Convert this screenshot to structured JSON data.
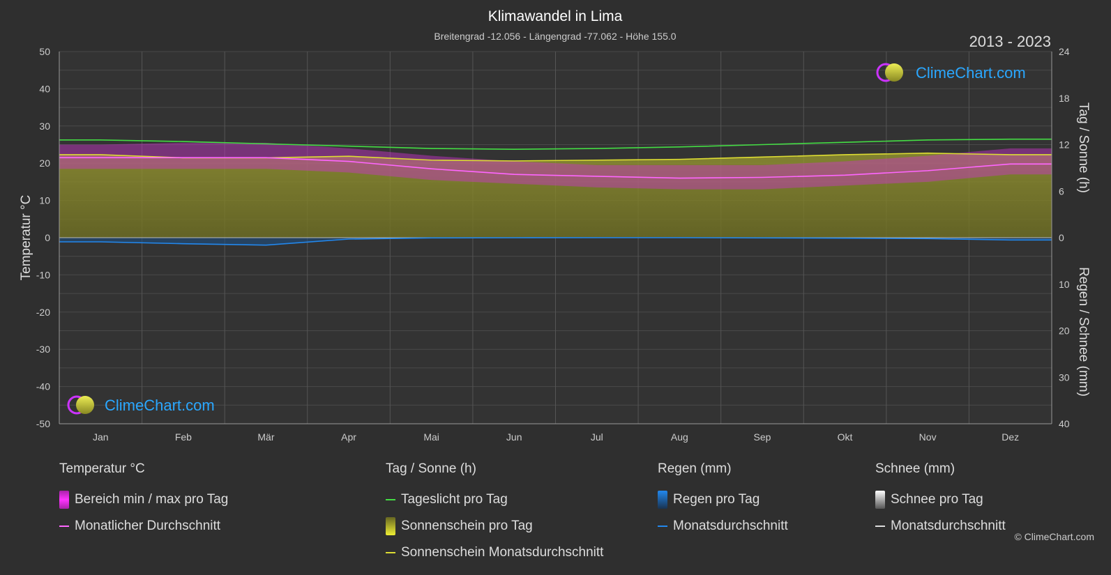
{
  "chart_data": {
    "type": "area",
    "title": "Klimawandel in Lima",
    "subtitle": "Breitengrad -12.056 - Längengrad -77.062 - Höhe 155.0",
    "period": "2013 - 2023",
    "watermark": "ClimeChart.com",
    "copyright": "© ClimeChart.com",
    "y_left_label": "Temperatur °C",
    "y_right_top_label": "Tag / Sonne (h)",
    "y_right_bottom_label": "Regen / Schnee (mm)",
    "y_left_ticks": [
      "50",
      "40",
      "30",
      "20",
      "10",
      "0",
      "-10",
      "-20",
      "-30",
      "-40",
      "-50"
    ],
    "y_right_top_ticks": [
      "24",
      "18",
      "12",
      "6",
      "0"
    ],
    "y_right_bottom_ticks": [
      "10",
      "20",
      "30",
      "40"
    ],
    "months": [
      "Jan",
      "Feb",
      "Mär",
      "Apr",
      "Mai",
      "Jun",
      "Jul",
      "Aug",
      "Sep",
      "Okt",
      "Nov",
      "Dez"
    ],
    "ylim_temp": [
      -50,
      50
    ],
    "ylim_sun_hours": [
      0,
      24
    ],
    "ylim_rain_mm": [
      0,
      40
    ],
    "series": {
      "daylight_hours": [
        12.6,
        12.4,
        12.1,
        11.8,
        11.5,
        11.4,
        11.5,
        11.7,
        12.0,
        12.3,
        12.6,
        12.7
      ],
      "sunshine_monthly_hours": [
        10.7,
        10.3,
        10.3,
        10.5,
        10.0,
        9.9,
        10.0,
        10.1,
        10.4,
        10.7,
        10.9,
        10.7
      ],
      "temp_monthly_avg_c": [
        21.5,
        21.5,
        21.5,
        20.5,
        18.5,
        17.0,
        16.5,
        16.0,
        16.2,
        16.8,
        18.0,
        19.8
      ],
      "temp_daily_max_c": [
        25,
        25.5,
        25.5,
        24,
        22,
        20.5,
        19.5,
        19.5,
        19.5,
        20.5,
        22,
        24
      ],
      "temp_daily_min_c": [
        18.5,
        18.5,
        18.5,
        17.5,
        15.5,
        14.5,
        13.5,
        13.0,
        13.0,
        14.0,
        15.0,
        17.0
      ],
      "rain_monthly_avg_mm": [
        0.9,
        1.3,
        1.6,
        0.3,
        0.05,
        0.02,
        0.0,
        0.0,
        0.05,
        0.1,
        0.2,
        0.5
      ],
      "snow_monthly_avg_mm": [
        0,
        0,
        0,
        0,
        0,
        0,
        0,
        0,
        0,
        0,
        0,
        0
      ]
    },
    "colors": {
      "daylight": "#44dd44",
      "sunshine_line": "#dddd33",
      "sunshine_fill": "#8a8a2a",
      "temp_range": "#cc33cc",
      "temp_avg": "#ff66ff",
      "rain": "#2288ee",
      "snow": "#dddddd"
    }
  },
  "legend": {
    "temp": {
      "title": "Temperatur °C",
      "item1": "Bereich min / max pro Tag",
      "item2": "Monatlicher Durchschnitt"
    },
    "sun": {
      "title": "Tag / Sonne (h)",
      "item1": "Tageslicht pro Tag",
      "item2": "Sonnenschein pro Tag",
      "item3": "Sonnenschein Monatsdurchschnitt"
    },
    "rain": {
      "title": "Regen (mm)",
      "item1": "Regen pro Tag",
      "item2": "Monatsdurchschnitt"
    },
    "snow": {
      "title": "Schnee (mm)",
      "item1": "Schnee pro Tag",
      "item2": "Monatsdurchschnitt"
    }
  }
}
